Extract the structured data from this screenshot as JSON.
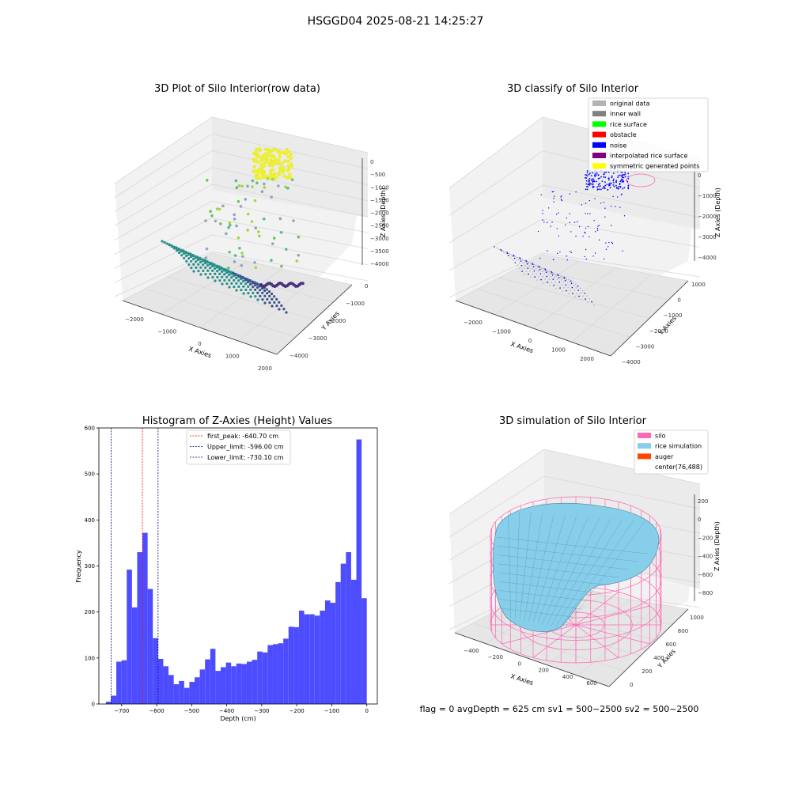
{
  "suptitle": "HSGGD04 2025-08-21 14:25:27",
  "footer": "flag = 0     avgDepth = 625 cm  sv1 = 500~2500  sv2 = 500~2500",
  "panels": {
    "raw": {
      "title": "3D Plot of Silo Interior(row data)",
      "xlabel": "X Axies",
      "ylabel": "Y Axies",
      "zlabel": "Z Axies (Depth)",
      "xticks": [
        "-2000",
        "-1000",
        "0",
        "1000",
        "2000"
      ],
      "yticks": [
        "0",
        "-1000",
        "-2000",
        "-3000",
        "-4000"
      ],
      "zticks": [
        "0",
        "-500",
        "-1000",
        "-1500",
        "-2000",
        "-2500",
        "-3000",
        "-3500",
        "-4000"
      ]
    },
    "classify": {
      "title": "3D classify of Silo Interior",
      "xlabel": "X Axies",
      "ylabel": "Y Axies",
      "zlabel": "Z Axies (Depth)",
      "xticks": [
        "-2000",
        "-1000",
        "0",
        "1000",
        "2000"
      ],
      "yticks": [
        "1000",
        "0",
        "-1000",
        "-2000",
        "-3000",
        "-4000"
      ],
      "zticks": [
        "0",
        "-1000",
        "-2000",
        "-3000",
        "-4000"
      ],
      "legend": [
        {
          "label": "original data",
          "color": "#b3b3b3"
        },
        {
          "label": "inner wall",
          "color": "#808080"
        },
        {
          "label": "rice surface",
          "color": "#00ff00"
        },
        {
          "label": "obstacle",
          "color": "#ff0000"
        },
        {
          "label": "noise",
          "color": "#0000ff"
        },
        {
          "label": "interpolated rice surface",
          "color": "#800080"
        },
        {
          "label": "symmetric generated points",
          "color": "#ffff00"
        }
      ]
    },
    "simulation": {
      "title": "3D simulation of Silo Interior",
      "xlabel": "X Axies",
      "ylabel": "Y Axies",
      "zlabel": "Z Axies (Depth)",
      "xticks": [
        "-400",
        "-200",
        "0",
        "200",
        "400",
        "600"
      ],
      "yticks": [
        "0",
        "200",
        "400",
        "600",
        "800",
        "1000"
      ],
      "zticks": [
        "200",
        "0",
        "-200",
        "-400",
        "-600",
        "-800"
      ],
      "legend": [
        {
          "label": "silo",
          "color": "#ff69b4"
        },
        {
          "label": "rice simulation",
          "color": "#87ceeb"
        },
        {
          "label": "auger",
          "color": "#ff4500"
        },
        {
          "label": "center(76,488)",
          "color": ""
        }
      ]
    }
  },
  "chart_data": {
    "type": "bar",
    "title": "Histogram of Z-Axies (Height) Values",
    "xlabel": "Depth (cm)",
    "ylabel": "Frequency",
    "xlim": [
      -765,
      30
    ],
    "ylim": [
      0,
      600
    ],
    "xticks": [
      -700,
      -600,
      -500,
      -400,
      -300,
      -200,
      -100,
      0
    ],
    "yticks": [
      0,
      100,
      200,
      300,
      400,
      500,
      600
    ],
    "bar_color": "#4d4dff",
    "bin_start": -745,
    "bin_width": 14.9,
    "values": [
      5,
      18,
      92,
      95,
      292,
      210,
      330,
      372,
      250,
      143,
      98,
      82,
      63,
      43,
      50,
      35,
      48,
      58,
      75,
      97,
      120,
      72,
      80,
      90,
      82,
      88,
      87,
      92,
      96,
      114,
      112,
      128,
      130,
      132,
      142,
      168,
      167,
      203,
      195,
      195,
      192,
      203,
      225,
      220,
      265,
      305,
      330,
      270,
      575,
      230
    ],
    "lines": [
      {
        "label": "first_peak: -640.70 cm",
        "x": -640.7,
        "color": "#ff0000"
      },
      {
        "label": "Upper_limit: -596.00 cm",
        "x": -596.0,
        "color": "#00008b"
      },
      {
        "label": "Lower_limit: -730.10 cm",
        "x": -730.1,
        "color": "#00008b"
      }
    ]
  }
}
